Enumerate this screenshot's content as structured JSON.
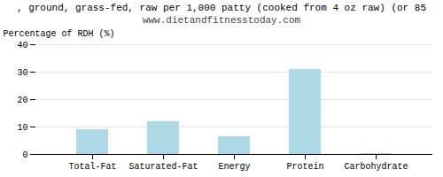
{
  "chart_data": {
    "type": "bar",
    "title": ", ground, grass-fed, raw per 1,000 patty (cooked from 4 oz raw) (or 85",
    "subtitle": "www.dietandfitnesstoday.com",
    "categories": [
      "Total-Fat",
      "Saturated-Fat",
      "Energy",
      "Protein",
      "Carbohydrate"
    ],
    "values": [
      9,
      12,
      6.5,
      31,
      0.3
    ],
    "color": "#add8e6",
    "ylabel": "Percentage of RDH (%)",
    "ylim": [
      0,
      40
    ],
    "yticks": [
      0,
      10,
      20,
      30,
      40
    ],
    "grid": true
  }
}
